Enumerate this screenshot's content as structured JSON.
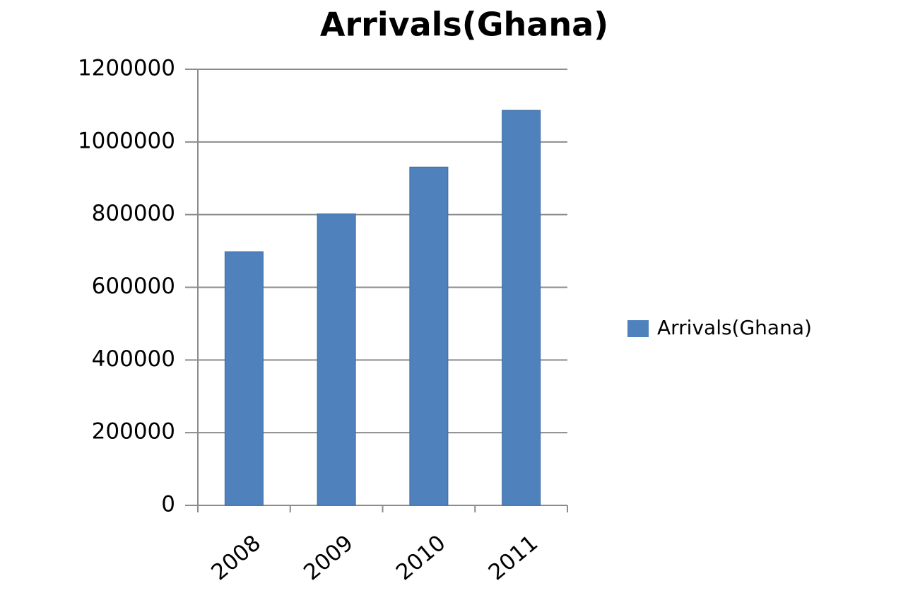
{
  "chart_data": {
    "type": "bar",
    "title": "Arrivals(Ghana)",
    "categories": [
      "2008",
      "2009",
      "2010",
      "2011"
    ],
    "series": [
      {
        "name": "Arrivals(Ghana)",
        "color": "#4f81bd",
        "values": [
          698000,
          802000,
          931000,
          1087000
        ]
      }
    ],
    "ylim": [
      0,
      1200000
    ],
    "yticks": [
      0,
      200000,
      400000,
      600000,
      800000,
      1000000,
      1200000
    ],
    "grid": true,
    "legend": "right"
  }
}
